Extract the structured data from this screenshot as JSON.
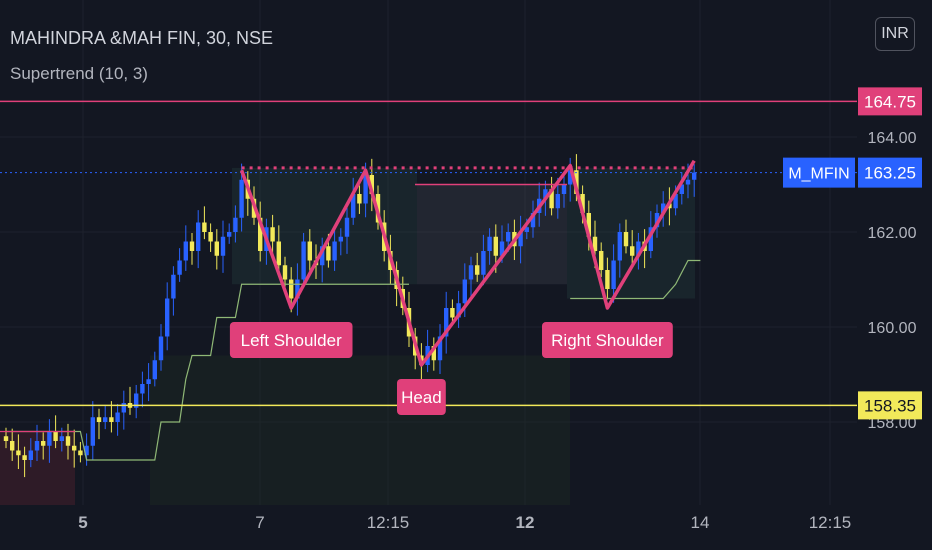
{
  "header": {
    "symbol_title": "MAHINDRA &MAH FIN, 30, NSE",
    "indicator": "Supertrend (10, 3)",
    "currency": "INR"
  },
  "colors": {
    "background": "#131722",
    "grid": "#1e222d",
    "up_candle": "#2962ff",
    "down_candle": "#f2e95a",
    "pattern": "#e0407a",
    "resistance": "#e0407a",
    "support": "#f2e95a",
    "supertrend": "#8fb876",
    "price_badge": "#2962ff"
  },
  "chart_data": {
    "type": "candlestick",
    "symbol": "M_MFIN",
    "ylim": [
      157.0,
      166.0
    ],
    "y_ticks": [
      "164.00",
      "162.00",
      "160.00",
      "158.00"
    ],
    "x_ticks": [
      "5",
      "7",
      "12:15",
      "12",
      "14",
      "12:15"
    ],
    "x_ticks_bold": [
      true,
      false,
      false,
      true,
      false,
      false
    ],
    "last_price": 163.25,
    "last_price_label": "163.25",
    "levels": [
      {
        "value": 164.75,
        "label": "164.75",
        "kind": "resistance"
      },
      {
        "value": 158.35,
        "label": "158.35",
        "kind": "support"
      }
    ],
    "neckline": 163.35,
    "pattern_points": [
      {
        "bar": 38,
        "value": 163.3
      },
      {
        "bar": 46,
        "value": 160.4
      },
      {
        "bar": 58,
        "value": 163.3
      },
      {
        "bar": 67,
        "value": 159.2
      },
      {
        "bar": 91,
        "value": 163.4
      },
      {
        "bar": 97,
        "value": 160.4
      },
      {
        "bar": 111,
        "value": 163.5
      }
    ],
    "annotations": [
      {
        "text": "Left Shoulder",
        "bar": 46,
        "value": 160.4
      },
      {
        "text": "Head",
        "bar": 67,
        "value": 159.2
      },
      {
        "text": "Right Shoulder",
        "bar": 97,
        "value": 160.4
      }
    ],
    "closes": [
      157.6,
      157.4,
      157.3,
      157.2,
      157.4,
      157.6,
      157.5,
      157.8,
      157.6,
      157.7,
      157.5,
      157.4,
      157.3,
      157.5,
      158.1,
      158.0,
      158.1,
      158.0,
      158.2,
      158.4,
      158.3,
      158.6,
      158.8,
      158.9,
      159.3,
      159.8,
      160.6,
      161.1,
      161.4,
      161.8,
      161.6,
      162.2,
      162.0,
      161.8,
      161.5,
      161.9,
      162.0,
      162.3,
      163.1,
      162.7,
      162.3,
      161.6,
      162.1,
      161.8,
      161.3,
      161.0,
      160.6,
      161.0,
      161.8,
      161.4,
      161.3,
      161.7,
      161.4,
      161.8,
      161.9,
      162.3,
      162.8,
      162.6,
      163.2,
      162.8,
      162.2,
      161.6,
      161.2,
      160.8,
      160.4,
      159.8,
      159.4,
      159.2,
      159.6,
      159.3,
      159.8,
      160.4,
      160.2,
      160.5,
      161.0,
      161.3,
      161.1,
      161.6,
      161.9,
      161.5,
      161.8,
      162.0,
      161.7,
      162.0,
      162.1,
      162.4,
      162.7,
      162.9,
      162.5,
      162.8,
      163.0,
      163.3,
      162.8,
      162.4,
      161.9,
      161.6,
      161.2,
      160.8,
      161.4,
      162.0,
      161.7,
      161.5,
      161.8,
      161.6,
      162.1,
      162.4,
      162.6,
      162.5,
      162.8,
      163.0,
      163.1,
      163.25
    ]
  }
}
